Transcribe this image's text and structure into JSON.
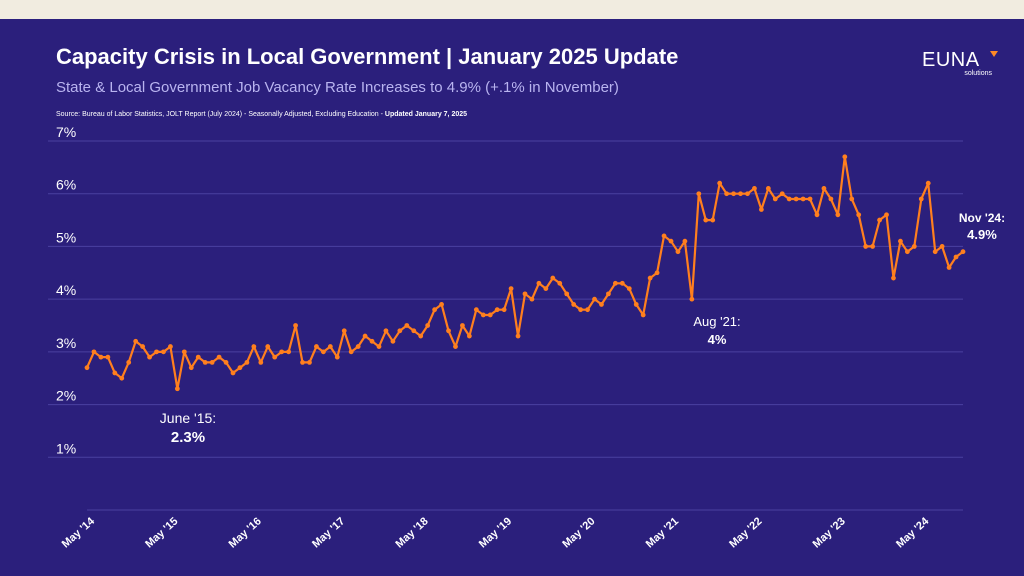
{
  "header": {
    "title": "Capacity Crisis in Local Government | January 2025 Update",
    "subtitle": "State & Local Government Job Vacancy Rate Increases to 4.9% (+.1% in November)",
    "source": "Source: Bureau of Labor Statistics, JOLT Report (July 2024) - Seasonally Adjusted, Excluding Education - ",
    "source_updated": "Updated January 7, 2025"
  },
  "logo": {
    "name": "EUNA",
    "sub": "solutions",
    "accent": "#ff8a26"
  },
  "colors": {
    "background": "#2b1f7c",
    "line": "#ff7f1e",
    "grid": "#4b41a0",
    "text": "#ffffff",
    "subtitle": "#b9b4f0"
  },
  "annotations": {
    "low": {
      "label": "June '15:",
      "value": "2.3%"
    },
    "aug21": {
      "label": "Aug '21:",
      "value": "4%"
    },
    "latest": {
      "label": "Nov '24:",
      "value": "4.9%"
    }
  },
  "chart_data": {
    "type": "line",
    "title": "Capacity Crisis in Local Government | January 2025 Update",
    "ylim": [
      0,
      7
    ],
    "y_ticks": [
      "1%",
      "2%",
      "3%",
      "4%",
      "5%",
      "6%",
      "7%"
    ],
    "x_tick_labels": [
      "May '14",
      "May '15",
      "May '16",
      "May '17",
      "May '18",
      "May '19",
      "May '20",
      "May '21",
      "May '22",
      "May '23",
      "May '24"
    ],
    "x_start": "May 2014",
    "x_end": "Nov 2024",
    "grid": true,
    "series": [
      {
        "color": "#ff7f1e",
        "values": [
          2.7,
          3.0,
          2.9,
          2.9,
          2.6,
          2.5,
          2.8,
          3.2,
          3.1,
          2.9,
          3.0,
          3.0,
          3.1,
          2.3,
          3.0,
          2.7,
          2.9,
          2.8,
          2.8,
          2.9,
          2.8,
          2.6,
          2.7,
          2.8,
          3.1,
          2.8,
          3.1,
          2.9,
          3.0,
          3.0,
          3.5,
          2.8,
          2.8,
          3.1,
          3.0,
          3.1,
          2.9,
          3.4,
          3.0,
          3.1,
          3.3,
          3.2,
          3.1,
          3.4,
          3.2,
          3.4,
          3.5,
          3.4,
          3.3,
          3.5,
          3.8,
          3.9,
          3.4,
          3.1,
          3.5,
          3.3,
          3.8,
          3.7,
          3.7,
          3.8,
          3.8,
          4.2,
          3.3,
          4.1,
          4.0,
          4.3,
          4.2,
          4.4,
          4.3,
          4.1,
          3.9,
          3.8,
          3.8,
          4.0,
          3.9,
          4.1,
          4.3,
          4.3,
          4.2,
          3.9,
          3.7,
          4.4,
          4.5,
          5.2,
          5.1,
          4.9,
          5.1,
          4.0,
          6.0,
          5.5,
          5.5,
          6.2,
          6.0,
          6.0,
          6.0,
          6.0,
          6.1,
          5.7,
          6.1,
          5.9,
          6.0,
          5.9,
          5.9,
          5.9,
          5.9,
          5.6,
          6.1,
          5.9,
          5.6,
          6.7,
          5.9,
          5.6,
          5.0,
          5.0,
          5.5,
          5.6,
          4.4,
          5.1,
          4.9,
          5.0,
          5.9,
          6.2,
          4.9,
          5.0,
          4.6,
          4.8,
          4.9
        ]
      }
    ]
  }
}
